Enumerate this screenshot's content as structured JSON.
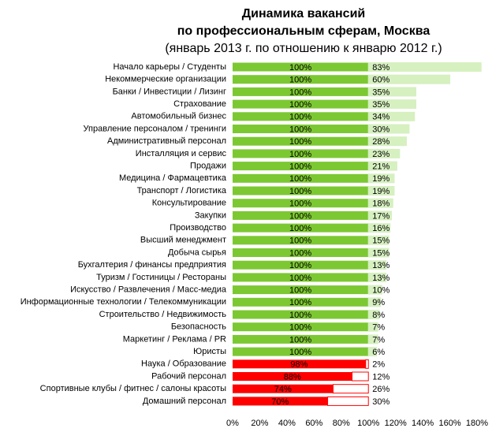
{
  "chart_data": {
    "type": "stacked-barh",
    "title": [
      "Динамика вакансий",
      "по профессиональным сферам, Москва"
    ],
    "subtitle": "(январь 2013 г. по отношению к январю 2012 г.)",
    "categories": [
      "Начало карьеры / Студенты",
      "Некоммерческие организации",
      "Банки / Инвестиции / Лизинг",
      "Страхование",
      "Автомобильный бизнес",
      "Управление персоналом / тренинги",
      "Административный персонал",
      "Инсталляция и сервис",
      "Продажи",
      "Медицина / Фармацевтика",
      "Транспорт / Логистика",
      "Консультирование",
      "Закупки",
      "Производство",
      "Высший менеджмент",
      "Добыча сырья",
      "Бухгалтерия / финансы предприятия",
      "Туризм / Гостиницы / Рестораны",
      "Искусство / Развлечения / Масс-медиа",
      "Информационные технологии / Телекоммуникации",
      "Строительство / Недвижимость",
      "Безопасность",
      "Маркетинг / Реклама / PR",
      "Юристы",
      "Наука / Образование",
      "Рабочий персонал",
      "Спортивные клубы / фитнес / салоны красоты",
      "Домашний персонал"
    ],
    "series": [
      {
        "values": [
          100,
          100,
          100,
          100,
          100,
          100,
          100,
          100,
          100,
          100,
          100,
          100,
          100,
          100,
          100,
          100,
          100,
          100,
          100,
          100,
          100,
          100,
          100,
          100,
          98,
          88,
          74,
          70
        ],
        "value_labels": [
          "100%",
          "100%",
          "100%",
          "100%",
          "100%",
          "100%",
          "100%",
          "100%",
          "100%",
          "100%",
          "100%",
          "100%",
          "100%",
          "100%",
          "100%",
          "100%",
          "100%",
          "100%",
          "100%",
          "100%",
          "100%",
          "100%",
          "100%",
          "100%",
          "98%",
          "88%",
          "74%",
          "70%"
        ],
        "colors": [
          "#7cc832",
          "#7cc832",
          "#7cc832",
          "#7cc832",
          "#7cc832",
          "#7cc832",
          "#7cc832",
          "#7cc832",
          "#7cc832",
          "#7cc832",
          "#7cc832",
          "#7cc832",
          "#7cc832",
          "#7cc832",
          "#7cc832",
          "#7cc832",
          "#7cc832",
          "#7cc832",
          "#7cc832",
          "#7cc832",
          "#7cc832",
          "#7cc832",
          "#7cc832",
          "#7cc832",
          "#ff0000",
          "#ff0000",
          "#ff0000",
          "#ff0000"
        ],
        "label_colors": [
          "#000000",
          "#000000",
          "#000000",
          "#000000",
          "#000000",
          "#000000",
          "#000000",
          "#000000",
          "#000000",
          "#000000",
          "#000000",
          "#000000",
          "#000000",
          "#000000",
          "#000000",
          "#000000",
          "#000000",
          "#000000",
          "#000000",
          "#000000",
          "#000000",
          "#000000",
          "#000000",
          "#000000",
          "#800000",
          "#800000",
          "#800000",
          "#800000"
        ]
      },
      {
        "values": [
          83,
          60,
          35,
          35,
          34,
          30,
          28,
          23,
          21,
          19,
          19,
          18,
          17,
          16,
          15,
          15,
          13,
          13,
          10,
          9,
          8,
          7,
          7,
          6,
          2,
          12,
          26,
          30
        ],
        "value_labels": [
          "83%",
          "60%",
          "35%",
          "35%",
          "34%",
          "30%",
          "28%",
          "23%",
          "21%",
          "19%",
          "19%",
          "18%",
          "17%",
          "16%",
          "15%",
          "15%",
          "13%",
          "13%",
          "10%",
          "9%",
          "8%",
          "7%",
          "7%",
          "6%",
          "2%",
          "12%",
          "26%",
          "30%"
        ],
        "colors": [
          "#d6f0c0",
          "#d6f0c0",
          "#d6f0c0",
          "#d6f0c0",
          "#d6f0c0",
          "#d6f0c0",
          "#d6f0c0",
          "#d6f0c0",
          "#d6f0c0",
          "#d6f0c0",
          "#d6f0c0",
          "#d6f0c0",
          "#d6f0c0",
          "#d6f0c0",
          "#d6f0c0",
          "#d6f0c0",
          "#d6f0c0",
          "#d6f0c0",
          "#d6f0c0",
          "#d6f0c0",
          "#d6f0c0",
          "#d6f0c0",
          "#d6f0c0",
          "#d6f0c0",
          "#ffffff",
          "#ffffff",
          "#ffffff",
          "#ffffff"
        ],
        "edge_colors": [
          "#d6f0c0",
          "#d6f0c0",
          "#d6f0c0",
          "#d6f0c0",
          "#d6f0c0",
          "#d6f0c0",
          "#d6f0c0",
          "#d6f0c0",
          "#d6f0c0",
          "#d6f0c0",
          "#d6f0c0",
          "#d6f0c0",
          "#d6f0c0",
          "#d6f0c0",
          "#d6f0c0",
          "#d6f0c0",
          "#d6f0c0",
          "#d6f0c0",
          "#d6f0c0",
          "#d6f0c0",
          "#d6f0c0",
          "#d6f0c0",
          "#d6f0c0",
          "#d6f0c0",
          "#ff0000",
          "#ff0000",
          "#ff0000",
          "#ff0000"
        ],
        "label_colors": [
          "#000000",
          "#000000",
          "#000000",
          "#000000",
          "#000000",
          "#000000",
          "#000000",
          "#000000",
          "#000000",
          "#000000",
          "#000000",
          "#000000",
          "#000000",
          "#000000",
          "#000000",
          "#000000",
          "#000000",
          "#000000",
          "#000000",
          "#000000",
          "#000000",
          "#000000",
          "#000000",
          "#000000",
          "#ff0000",
          "#ff0000",
          "#ff0000",
          "#ff0000"
        ]
      }
    ],
    "xlim": [
      0,
      180
    ],
    "xticks": [
      {
        "value": 0,
        "label": "0%"
      },
      {
        "value": 20,
        "label": "20%"
      },
      {
        "value": 40,
        "label": "40%"
      },
      {
        "value": 60,
        "label": "60%"
      },
      {
        "value": 80,
        "label": "80%"
      },
      {
        "value": 100,
        "label": "100%"
      },
      {
        "value": 120,
        "label": "120%"
      },
      {
        "value": 140,
        "label": "140%"
      },
      {
        "value": 160,
        "label": "160%"
      },
      {
        "value": 180,
        "label": "180%"
      }
    ],
    "grid": false
  }
}
